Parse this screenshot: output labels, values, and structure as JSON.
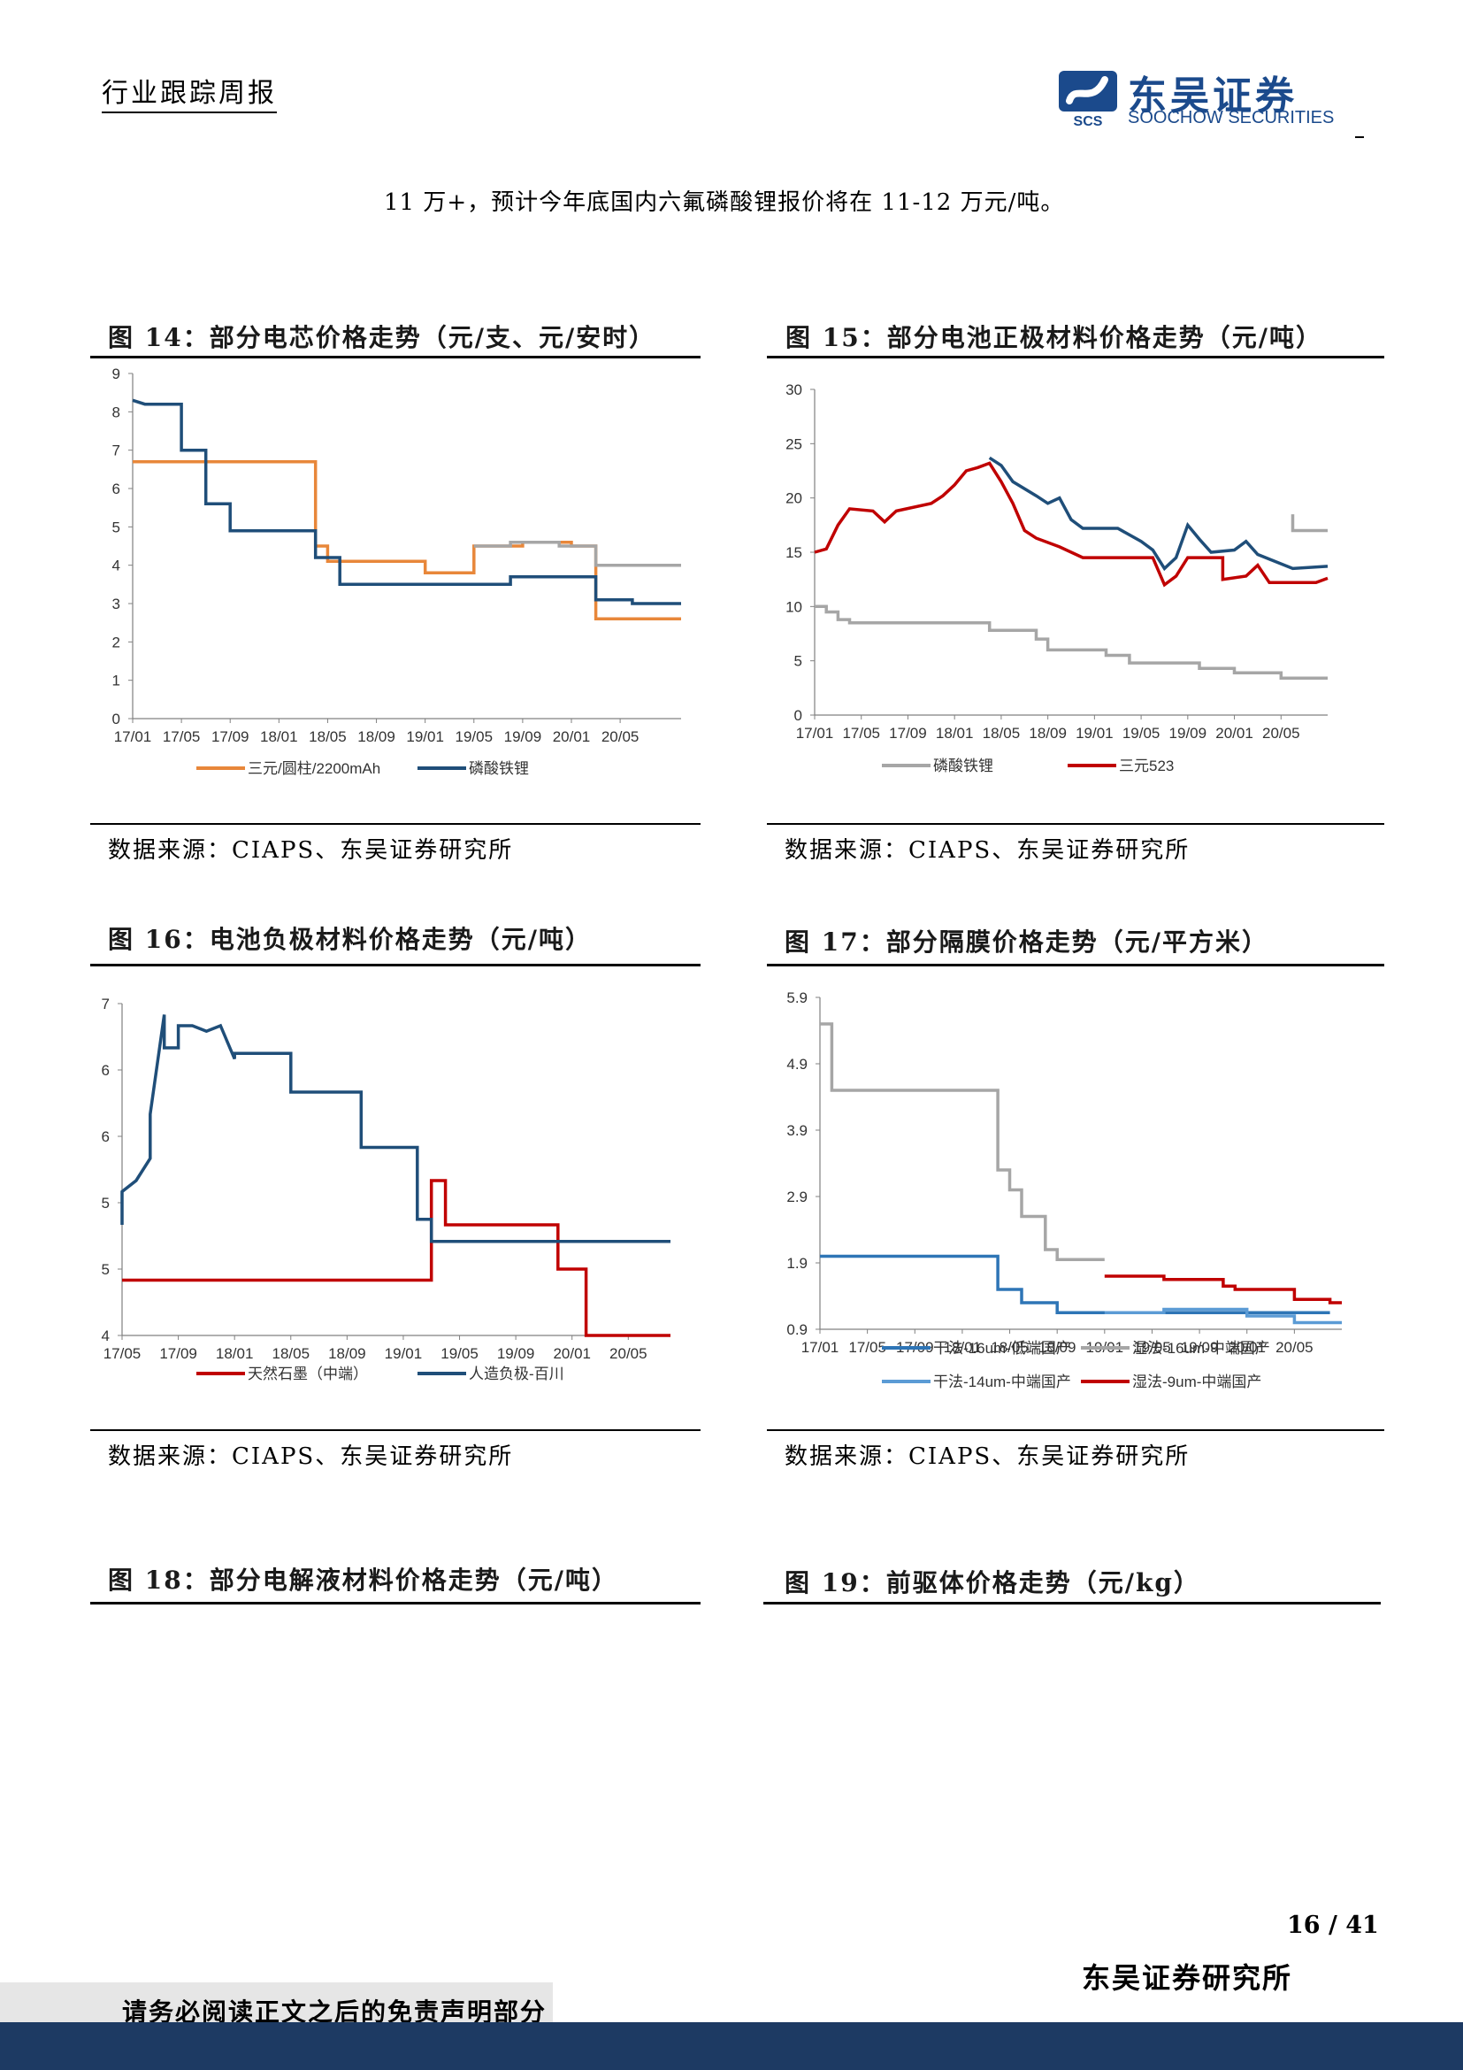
{
  "header": {
    "title": "行业跟踪周报",
    "logo_cn": "东吴证券",
    "logo_en": "SOOCHOW SECURITIES",
    "logo_mark": "SCS"
  },
  "intro": "11 万+，预计今年底国内六氟磷酸锂报价将在 11-12 万元/吨。",
  "figures": [
    {
      "title": "图 14：部分电芯价格走势（元/支、元/安时）",
      "source": "数据来源：CIAPS、东吴证券研究所"
    },
    {
      "title": "图 15：部分电池正极材料价格走势（元/吨）",
      "source": "数据来源：CIAPS、东吴证券研究所"
    },
    {
      "title": "图 16：电池负极材料价格走势（元/吨）",
      "source": "数据来源：CIAPS、东吴证券研究所"
    },
    {
      "title": "图 17：部分隔膜价格走势（元/平方米）",
      "source": "数据来源：CIAPS、东吴证券研究所"
    },
    {
      "title": "图 18：部分电解液材料价格走势（元/吨）"
    },
    {
      "title": "图 19：前驱体价格走势（元/kg）"
    }
  ],
  "chart_data": [
    {
      "type": "line",
      "x_ticks": [
        "17/01",
        "17/05",
        "17/09",
        "18/01",
        "18/05",
        "18/09",
        "19/01",
        "19/05",
        "19/09",
        "20/01",
        "20/05"
      ],
      "y_ticks": [
        "0",
        "1",
        "2",
        "3",
        "4",
        "5",
        "6",
        "7",
        "8",
        "9"
      ],
      "ylim": [
        0,
        9
      ],
      "xlim": [
        "17/01",
        "20/10"
      ],
      "series": [
        {
          "name": "三元/圆柱/2200mAh",
          "color": "#e8873a",
          "points": [
            [
              "17/01",
              6.7
            ],
            [
              "18/04",
              6.7
            ],
            [
              "18/04",
              4.5
            ],
            [
              "18/05",
              4.5
            ],
            [
              "18/05",
              4.1
            ],
            [
              "19/01",
              4.1
            ],
            [
              "19/01",
              3.8
            ],
            [
              "19/05",
              3.8
            ],
            [
              "19/05",
              4.5
            ],
            [
              "19/09",
              4.5
            ],
            [
              "19/09",
              4.6
            ],
            [
              "20/01",
              4.6
            ],
            [
              "20/01",
              4.5
            ],
            [
              "20/03",
              4.5
            ],
            [
              "20/03",
              2.6
            ],
            [
              "20/10",
              2.6
            ]
          ]
        },
        {
          "name": "磷酸铁锂",
          "color": "#1f4e79",
          "points": [
            [
              "17/01",
              8.3
            ],
            [
              "17/02",
              8.2
            ],
            [
              "17/05",
              8.2
            ],
            [
              "17/05",
              7.0
            ],
            [
              "17/07",
              7.0
            ],
            [
              "17/07",
              5.6
            ],
            [
              "17/09",
              5.6
            ],
            [
              "17/09",
              4.9
            ],
            [
              "18/04",
              4.9
            ],
            [
              "18/04",
              4.2
            ],
            [
              "18/06",
              4.2
            ],
            [
              "18/06",
              3.5
            ],
            [
              "19/08",
              3.5
            ],
            [
              "19/08",
              3.7
            ],
            [
              "20/03",
              3.7
            ],
            [
              "20/03",
              3.1
            ],
            [
              "20/06",
              3.1
            ],
            [
              "20/06",
              3.0
            ],
            [
              "20/10",
              3.0
            ]
          ]
        },
        {
          "name": "",
          "color": "#a6a6a6",
          "points": [
            [
              "19/05",
              4.5
            ],
            [
              "19/08",
              4.5
            ],
            [
              "19/08",
              4.6
            ],
            [
              "19/12",
              4.6
            ],
            [
              "19/12",
              4.5
            ],
            [
              "20/03",
              4.5
            ],
            [
              "20/03",
              4.0
            ],
            [
              "20/10",
              4.0
            ]
          ]
        }
      ]
    },
    {
      "type": "line",
      "x_ticks": [
        "17/01",
        "17/05",
        "17/09",
        "18/01",
        "18/05",
        "18/09",
        "19/01",
        "19/05",
        "19/09",
        "20/01",
        "20/05"
      ],
      "y_ticks": [
        "0",
        "5",
        "10",
        "15",
        "20",
        "25",
        "30"
      ],
      "ylim": [
        0,
        30
      ],
      "xlim": [
        "17/01",
        "20/09"
      ],
      "series": [
        {
          "name": "磷酸铁锂",
          "color": "#a6a6a6",
          "points": [
            [
              "17/01",
              10
            ],
            [
              "17/02",
              10
            ],
            [
              "17/02",
              9.5
            ],
            [
              "17/03",
              9.5
            ],
            [
              "17/03",
              8.8
            ],
            [
              "17/04",
              8.8
            ],
            [
              "17/04",
              8.5
            ],
            [
              "18/04",
              8.5
            ],
            [
              "18/04",
              7.8
            ],
            [
              "18/08",
              7.8
            ],
            [
              "18/08",
              7.0
            ],
            [
              "18/09",
              7.0
            ],
            [
              "18/09",
              6.0
            ],
            [
              "19/02",
              6.0
            ],
            [
              "19/02",
              5.5
            ],
            [
              "19/04",
              5.5
            ],
            [
              "19/04",
              4.8
            ],
            [
              "19/10",
              4.8
            ],
            [
              "19/10",
              4.3
            ],
            [
              "20/01",
              4.3
            ],
            [
              "20/01",
              3.9
            ],
            [
              "20/05",
              3.9
            ],
            [
              "20/05",
              3.4
            ],
            [
              "20/09",
              3.4
            ]
          ]
        },
        {
          "name": "三元523",
          "color": "#c00000",
          "points": [
            [
              "17/01",
              15
            ],
            [
              "17/02",
              15.3
            ],
            [
              "17/03",
              17.5
            ],
            [
              "17/04",
              19
            ],
            [
              "17/06",
              18.8
            ],
            [
              "17/07",
              17.8
            ],
            [
              "17/08",
              18.8
            ],
            [
              "17/11",
              19.5
            ],
            [
              "17/12",
              20.2
            ],
            [
              "18/01",
              21.2
            ],
            [
              "18/02",
              22.5
            ],
            [
              "18/03",
              22.8
            ],
            [
              "18/04",
              23.2
            ],
            [
              "18/05",
              21.5
            ],
            [
              "18/06",
              19.5
            ],
            [
              "18/07",
              17
            ],
            [
              "18/08",
              16.3
            ],
            [
              "18/10",
              15.5
            ],
            [
              "18/12",
              14.5
            ],
            [
              "19/06",
              14.5
            ],
            [
              "19/07",
              12
            ],
            [
              "19/08",
              12.8
            ],
            [
              "19/09",
              14.5
            ],
            [
              "19/12",
              14.5
            ],
            [
              "19/12",
              12.5
            ],
            [
              "20/02",
              12.8
            ],
            [
              "20/03",
              13.8
            ],
            [
              "20/04",
              12.2
            ],
            [
              "20/08",
              12.2
            ],
            [
              "20/09",
              12.6
            ]
          ]
        },
        {
          "name": "",
          "color": "#1f4e79",
          "points": [
            [
              "18/04",
              23.7
            ],
            [
              "18/05",
              23
            ],
            [
              "18/06",
              21.5
            ],
            [
              "18/08",
              20.2
            ],
            [
              "18/09",
              19.5
            ],
            [
              "18/10",
              20
            ],
            [
              "18/11",
              18
            ],
            [
              "18/12",
              17.2
            ],
            [
              "19/03",
              17.2
            ],
            [
              "19/05",
              16
            ],
            [
              "19/06",
              15.2
            ],
            [
              "19/07",
              13.5
            ],
            [
              "19/08",
              14.5
            ],
            [
              "19/09",
              17.5
            ],
            [
              "19/10",
              16.2
            ],
            [
              "19/11",
              15
            ],
            [
              "20/01",
              15.2
            ],
            [
              "20/02",
              16
            ],
            [
              "20/03",
              14.8
            ],
            [
              "20/06",
              13.5
            ],
            [
              "20/09",
              13.7
            ]
          ]
        },
        {
          "name": "",
          "color": "#a6a6a6",
          "points": [
            [
              "20/06",
              18.5
            ],
            [
              "20/06",
              17
            ],
            [
              "20/09",
              17
            ]
          ]
        }
      ]
    },
    {
      "type": "line",
      "x_ticks": [
        "17/05",
        "17/09",
        "18/01",
        "18/05",
        "18/09",
        "19/01",
        "19/05",
        "19/09",
        "20/01",
        "20/05"
      ],
      "y_ticks": [
        "4",
        "5",
        "5",
        "6",
        "6",
        "7"
      ],
      "ylim": [
        4,
        7
      ],
      "xlim": [
        "17/05",
        "20/08"
      ],
      "series": [
        {
          "name": "天然石墨（中端）",
          "color": "#c00000",
          "points": [
            [
              "17/05",
              4.5
            ],
            [
              "19/03",
              4.5
            ],
            [
              "19/03",
              5.4
            ],
            [
              "19/04",
              5.4
            ],
            [
              "19/04",
              5.0
            ],
            [
              "19/12",
              5.0
            ],
            [
              "19/12",
              4.6
            ],
            [
              "20/02",
              4.6
            ],
            [
              "20/02",
              4.0
            ],
            [
              "20/08",
              4.0
            ]
          ]
        },
        {
          "name": "人造负极-百川",
          "color": "#1f4e79",
          "points": [
            [
              "17/05",
              5.0
            ],
            [
              "17/05",
              5.3
            ],
            [
              "17/06",
              5.4
            ],
            [
              "17/07",
              5.6
            ],
            [
              "17/07",
              6.0
            ],
            [
              "17/08",
              6.9
            ],
            [
              "17/08",
              6.6
            ],
            [
              "17/09",
              6.6
            ],
            [
              "17/09",
              6.8
            ],
            [
              "17/10",
              6.8
            ],
            [
              "17/11",
              6.75
            ],
            [
              "17/12",
              6.8
            ],
            [
              "18/01",
              6.5
            ],
            [
              "18/01",
              6.55
            ],
            [
              "18/05",
              6.55
            ],
            [
              "18/05",
              6.2
            ],
            [
              "18/08",
              6.2
            ],
            [
              "18/08",
              6.2
            ],
            [
              "18/10",
              6.2
            ],
            [
              "18/10",
              5.7
            ],
            [
              "19/02",
              5.7
            ],
            [
              "19/02",
              5.05
            ],
            [
              "19/03",
              5.05
            ],
            [
              "19/03",
              4.85
            ],
            [
              "20/08",
              4.85
            ]
          ]
        }
      ]
    },
    {
      "type": "line",
      "x_ticks": [
        "17/01",
        "17/05",
        "17/09",
        "18/01",
        "18/05",
        "18/09",
        "19/01",
        "19/05",
        "19/09",
        "20/01",
        "20/05"
      ],
      "y_ticks": [
        "0.9",
        "1.9",
        "2.9",
        "3.9",
        "4.9",
        "5.9"
      ],
      "ylim": [
        0.9,
        5.9
      ],
      "xlim": [
        "17/01",
        "20/09"
      ],
      "series": [
        {
          "name": "干法-16um-低端国产",
          "color": "#2e75b6",
          "points": [
            [
              "17/01",
              2.0
            ],
            [
              "18/04",
              2.0
            ],
            [
              "18/04",
              1.5
            ],
            [
              "18/06",
              1.5
            ],
            [
              "18/06",
              1.3
            ],
            [
              "18/09",
              1.3
            ],
            [
              "18/09",
              1.15
            ],
            [
              "20/08",
              1.15
            ]
          ]
        },
        {
          "name": "湿法-16um-中端国产",
          "color": "#a6a6a6",
          "points": [
            [
              "17/01",
              5.5
            ],
            [
              "17/02",
              5.5
            ],
            [
              "17/02",
              4.5
            ],
            [
              "18/04",
              4.5
            ],
            [
              "18/04",
              3.3
            ],
            [
              "18/05",
              3.3
            ],
            [
              "18/05",
              3.0
            ],
            [
              "18/06",
              3.0
            ],
            [
              "18/06",
              2.6
            ],
            [
              "18/08",
              2.6
            ],
            [
              "18/08",
              2.1
            ],
            [
              "18/09",
              2.1
            ],
            [
              "18/09",
              1.95
            ],
            [
              "19/01",
              1.95
            ]
          ]
        },
        {
          "name": "干法-14um-中端国产",
          "color": "#5b9bd5",
          "points": [
            [
              "19/01",
              1.15
            ],
            [
              "19/06",
              1.15
            ],
            [
              "19/06",
              1.2
            ],
            [
              "20/01",
              1.2
            ],
            [
              "20/01",
              1.1
            ],
            [
              "20/05",
              1.1
            ],
            [
              "20/05",
              1.0
            ],
            [
              "20/09",
              1.0
            ]
          ]
        },
        {
          "name": "湿法-9um-中端国产",
          "color": "#c00000",
          "points": [
            [
              "19/01",
              1.7
            ],
            [
              "19/06",
              1.7
            ],
            [
              "19/06",
              1.65
            ],
            [
              "19/11",
              1.65
            ],
            [
              "19/11",
              1.55
            ],
            [
              "19/12",
              1.55
            ],
            [
              "19/12",
              1.5
            ],
            [
              "20/05",
              1.5
            ],
            [
              "20/05",
              1.35
            ],
            [
              "20/08",
              1.35
            ],
            [
              "20/08",
              1.3
            ],
            [
              "20/09",
              1.3
            ]
          ]
        }
      ]
    }
  ],
  "page_number": "16 / 41",
  "footer_org": "东吴证券研究所",
  "disclaimer": "请务必阅读正文之后的免责声明部分",
  "colors": {
    "brand": "#1b4a8c",
    "bottom_bar": "#1d3a63"
  }
}
